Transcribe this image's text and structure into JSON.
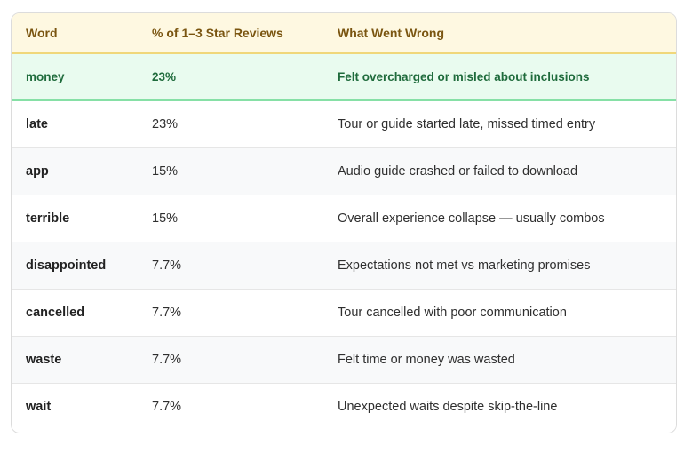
{
  "table": {
    "headers": [
      "Word",
      "% of 1–3 Star Reviews",
      "What Went Wrong"
    ],
    "rows": [
      {
        "word": "money",
        "pct": "23%",
        "desc": "Felt overcharged or misled about inclusions"
      },
      {
        "word": "late",
        "pct": "23%",
        "desc": "Tour or guide started late, missed timed entry"
      },
      {
        "word": "app",
        "pct": "15%",
        "desc": "Audio guide crashed or failed to download"
      },
      {
        "word": "terrible",
        "pct": "15%",
        "desc": "Overall experience collapse — usually combos"
      },
      {
        "word": "disappointed",
        "pct": "7.7%",
        "desc": "Expectations not met vs marketing promises"
      },
      {
        "word": "cancelled",
        "pct": "7.7%",
        "desc": "Tour cancelled with poor communication"
      },
      {
        "word": "waste",
        "pct": "7.7%",
        "desc": "Felt time or money was wasted"
      },
      {
        "word": "wait",
        "pct": "7.7%",
        "desc": "Unexpected waits despite skip-the-line"
      }
    ]
  },
  "colors": {
    "header_bg": "#fef8e1",
    "header_text": "#7a5510",
    "highlight_bg": "#e9fbef",
    "highlight_text": "#1f6b3c"
  }
}
